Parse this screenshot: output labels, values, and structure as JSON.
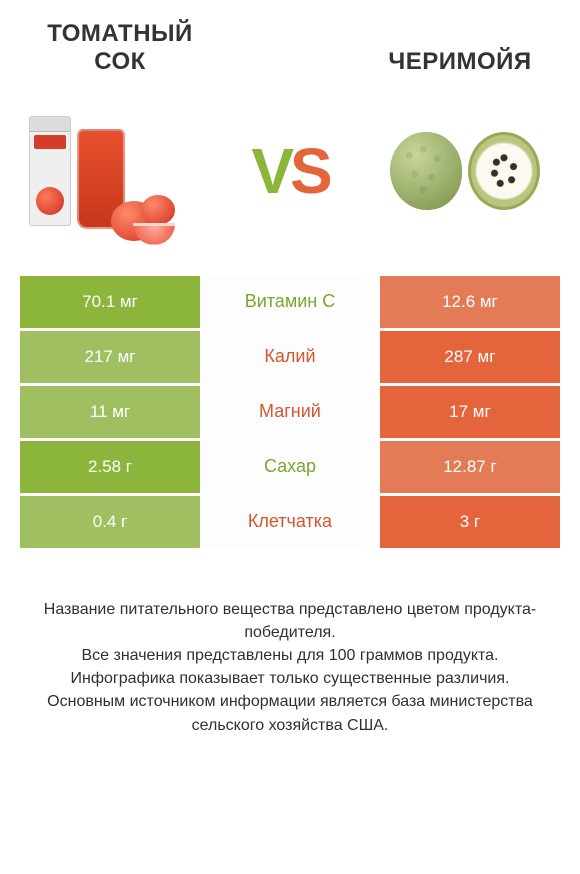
{
  "colors": {
    "green": "#8bb53b",
    "green_dim": "#9fbf60",
    "orange": "#e4653b",
    "orange_dim": "#e37c56",
    "mid_green_text": "#7da52f",
    "mid_orange_text": "#d3562f"
  },
  "left": {
    "title": "ТОМАТНЫЙ СОК"
  },
  "right": {
    "title": "ЧЕРИМОЙЯ"
  },
  "vs": {
    "v": "V",
    "s": "S"
  },
  "rows": [
    {
      "left": {
        "val": "70.1 мг",
        "fill": "green",
        "winner": true
      },
      "label": "Витамин C",
      "label_color": "mid_green_text",
      "right": {
        "val": "12.6 мг",
        "fill": "orange_dim",
        "winner": false
      }
    },
    {
      "left": {
        "val": "217 мг",
        "fill": "green_dim",
        "winner": false
      },
      "label": "Калий",
      "label_color": "mid_orange_text",
      "right": {
        "val": "287 мг",
        "fill": "orange",
        "winner": true
      }
    },
    {
      "left": {
        "val": "11 мг",
        "fill": "green_dim",
        "winner": false
      },
      "label": "Магний",
      "label_color": "mid_orange_text",
      "right": {
        "val": "17 мг",
        "fill": "orange",
        "winner": true
      }
    },
    {
      "left": {
        "val": "2.58 г",
        "fill": "green",
        "winner": true
      },
      "label": "Сахар",
      "label_color": "mid_green_text",
      "right": {
        "val": "12.87 г",
        "fill": "orange_dim",
        "winner": false
      }
    },
    {
      "left": {
        "val": "0.4 г",
        "fill": "green_dim",
        "winner": false
      },
      "label": "Клетчатка",
      "label_color": "mid_orange_text",
      "right": {
        "val": "3 г",
        "fill": "orange",
        "winner": true
      }
    }
  ],
  "footer": {
    "l1": "Название питательного вещества представлено цветом продукта-победителя.",
    "l2": "Все значения представлены для 100 граммов продукта.",
    "l3": "Инфографика показывает только существенные различия.",
    "l4": "Основным источником информации является база министерства сельского хозяйства США."
  }
}
